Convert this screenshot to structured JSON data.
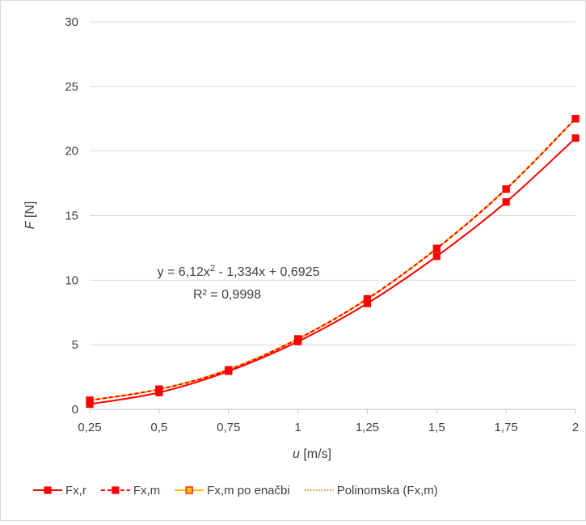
{
  "chart_data": {
    "type": "line",
    "title": "",
    "xlabel": {
      "var": "u",
      "unit": "[m/s]"
    },
    "ylabel": {
      "var": "F",
      "unit": "[N]"
    },
    "x": [
      0.25,
      0.5,
      0.75,
      1,
      1.25,
      1.5,
      1.75,
      2
    ],
    "x_tick_labels": [
      "0,25",
      "0,5",
      "0,75",
      "1",
      "1,25",
      "1,5",
      "1,75",
      "2"
    ],
    "ylim": [
      0,
      30
    ],
    "y_ticks": [
      0,
      5,
      10,
      15,
      20,
      25,
      30
    ],
    "grid": "horizontal",
    "legend_placement": "bottom",
    "series": [
      {
        "name": "Fx,r",
        "color": "#ff0000",
        "style": "solid",
        "marker": "square",
        "values": [
          0.4,
          1.3,
          2.95,
          5.25,
          8.2,
          11.85,
          16.05,
          21.0
        ]
      },
      {
        "name": "Fx,m",
        "color": "#ff0000",
        "style": "dashed",
        "marker": "square",
        "values": [
          0.7,
          1.55,
          3.05,
          5.45,
          8.55,
          12.45,
          17.05,
          22.5
        ]
      },
      {
        "name": "Fx,m po enačbi",
        "color": "#ffc000",
        "style": "solid",
        "marker": "square",
        "marker_fill": "#ffc000",
        "marker_stroke": "#ff0000",
        "values": [
          0.7,
          1.55,
          3.05,
          5.45,
          8.55,
          12.45,
          17.05,
          22.5
        ]
      }
    ],
    "trendline": {
      "name": "Polinomska (Fx,m)",
      "color": "#ed7d31",
      "style": "dotted",
      "equation": "y = 6,12x² - 1,334x + 0,6925",
      "equation_parts": {
        "pre": "y = 6,12x",
        "sup": "2",
        "post": " - 1,334x + 0,6925"
      },
      "r_squared": "R² = 0,9998",
      "coefficients": [
        6.12,
        -1.334,
        0.6925
      ]
    }
  }
}
